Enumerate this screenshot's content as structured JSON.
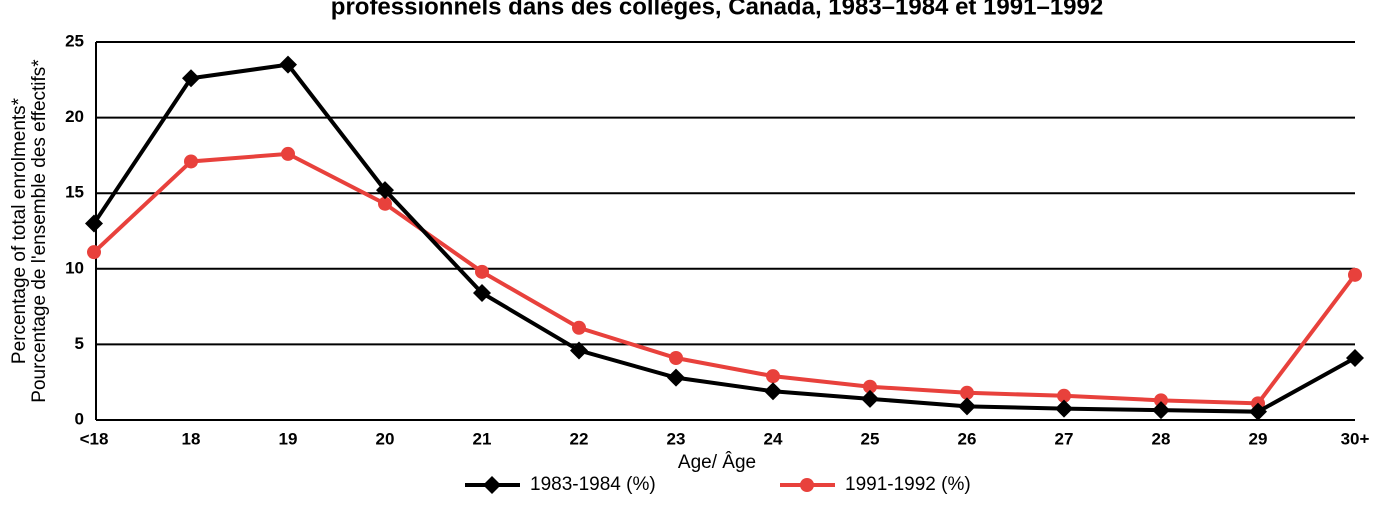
{
  "chart_data": {
    "type": "line",
    "title": "professionnels dans des collèges, Canada, 1983–1984 et 1991–1992",
    "y_label": [
      "Percentage of total enrolments*",
      "Pourcentage de l'ensemble des effectifs*"
    ],
    "x_label": "Age/ Âge",
    "categories": [
      "<18",
      "18",
      "19",
      "20",
      "21",
      "22",
      "23",
      "24",
      "25",
      "26",
      "27",
      "28",
      "29",
      "30+"
    ],
    "series": [
      {
        "name": "1983-1984 (%)",
        "color": "#000000",
        "marker": "diamond",
        "values": [
          13.0,
          22.6,
          23.5,
          15.2,
          8.4,
          4.6,
          2.8,
          1.9,
          1.4,
          0.9,
          0.75,
          0.65,
          0.55,
          4.1
        ]
      },
      {
        "name": "1991-1992 (%)",
        "color": "#e8413c",
        "marker": "circle",
        "values": [
          11.1,
          17.1,
          17.6,
          14.3,
          9.8,
          6.1,
          4.1,
          2.9,
          2.2,
          1.8,
          1.6,
          1.3,
          1.1,
          9.6
        ]
      }
    ],
    "ylim": [
      0,
      25
    ],
    "yticks": [
      0,
      5,
      10,
      15,
      20,
      25
    ],
    "grid": true
  }
}
